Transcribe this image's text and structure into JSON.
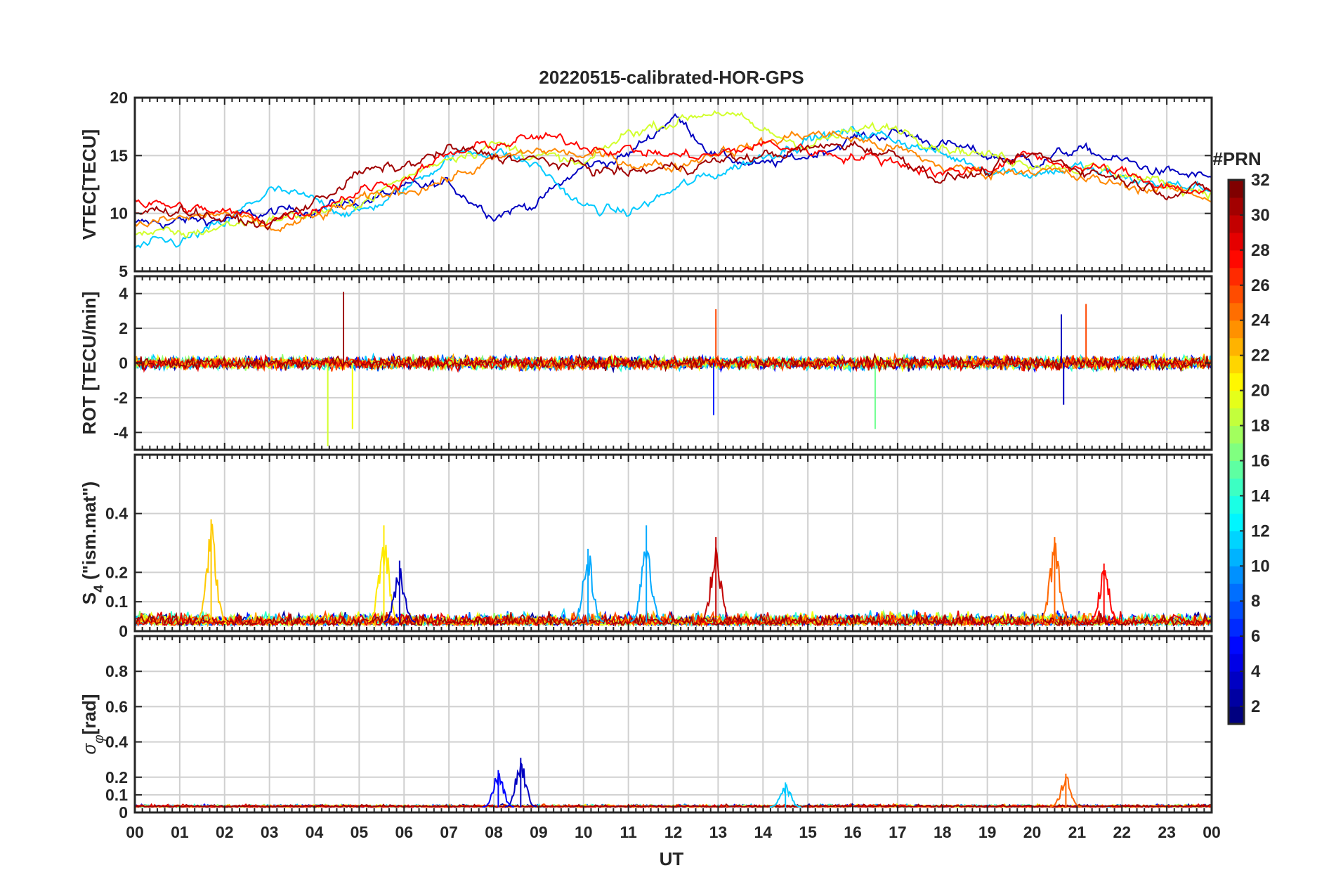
{
  "figure": {
    "title": "20220515-calibrated-HOR-GPS",
    "xlabel": "UT"
  },
  "chart_data": [
    {
      "type": "line",
      "panel": "vtec",
      "title": "20220515-calibrated-HOR-GPS",
      "ylabel": "VTEC[TECU]",
      "ylim": [
        5,
        20
      ],
      "yticks": [
        "5",
        "10",
        "15",
        "20"
      ],
      "xlim": [
        0,
        24
      ],
      "grid": true,
      "series_note": "multiple PRN traces colored by PRN (jet colormap)",
      "series": [
        {
          "prn": 3,
          "x": [
            0,
            1,
            2,
            3,
            4,
            5,
            6,
            7,
            8,
            9,
            10,
            11,
            12,
            13,
            14,
            15,
            16,
            17,
            18,
            19,
            20,
            21,
            22,
            23,
            24
          ],
          "y": [
            9,
            9.3,
            9.5,
            10,
            10.5,
            11,
            12,
            12.5,
            10,
            11,
            14,
            15,
            18.5,
            15,
            14,
            15,
            16.5,
            17,
            16,
            15,
            14.5,
            15.5,
            14.5,
            13.5,
            13
          ]
        },
        {
          "prn": 11,
          "x": [
            0,
            1,
            2,
            3,
            4,
            5,
            6,
            7,
            8,
            9,
            10,
            11,
            12,
            13,
            14,
            15,
            16,
            17,
            18,
            19,
            20,
            21,
            22,
            23,
            24
          ],
          "y": [
            7,
            7.5,
            9,
            12,
            11,
            10,
            12,
            15,
            15.5,
            14,
            10.5,
            10,
            12,
            13.5,
            15,
            16.5,
            17,
            16.5,
            15,
            14,
            13.5,
            14,
            13,
            12.5,
            12
          ]
        },
        {
          "prn": 19,
          "x": [
            0,
            1,
            2,
            3,
            4,
            5,
            6,
            7,
            8,
            9,
            10,
            11,
            12,
            13,
            14,
            15,
            16,
            17,
            18,
            19,
            20,
            21,
            22,
            23,
            24
          ],
          "y": [
            8.5,
            8,
            9,
            9.5,
            10,
            11,
            13,
            15,
            16,
            15,
            14,
            17,
            18,
            19,
            17,
            16,
            17,
            17.5,
            16,
            15,
            14.5,
            14,
            13.5,
            12.5,
            12
          ]
        },
        {
          "prn": 24,
          "x": [
            0,
            1,
            2,
            3,
            4,
            5,
            6,
            7,
            8,
            9,
            10,
            11,
            12,
            13,
            14,
            15,
            16,
            17,
            18,
            19,
            20,
            21,
            22,
            23,
            24
          ],
          "y": [
            9,
            9.5,
            10,
            8.5,
            9.5,
            11,
            12,
            13,
            14.5,
            15.5,
            15,
            14.5,
            14,
            15.5,
            16,
            17,
            16.5,
            15.5,
            14,
            13.5,
            14,
            13,
            12.5,
            12,
            11.5
          ]
        },
        {
          "prn": 28,
          "x": [
            0,
            1,
            2,
            3,
            4,
            5,
            6,
            7,
            8,
            9,
            10,
            11,
            12,
            13,
            14,
            15,
            16,
            17,
            18,
            19,
            20,
            21,
            22,
            23,
            24
          ],
          "y": [
            11,
            10.5,
            10,
            9.5,
            10.5,
            12,
            13,
            15,
            16,
            16.5,
            16,
            15.5,
            15,
            15,
            16,
            15.5,
            15,
            14.5,
            13.5,
            14,
            15,
            14,
            13.5,
            12.5,
            11.5
          ]
        },
        {
          "prn": 31,
          "x": [
            0,
            1,
            2,
            3,
            4,
            5,
            6,
            7,
            8,
            9,
            10,
            11,
            12,
            13,
            14,
            15,
            16,
            17,
            18,
            19,
            20,
            21,
            22,
            23,
            24
          ],
          "y": [
            10,
            10.5,
            9.5,
            9,
            11,
            13.5,
            14,
            15.5,
            15,
            14.5,
            14,
            13.5,
            14,
            14.5,
            15,
            15.5,
            16,
            15,
            13,
            13.5,
            15,
            14,
            13,
            12,
            12
          ]
        }
      ]
    },
    {
      "type": "line",
      "panel": "rot",
      "ylabel": "ROT [TECU/min]",
      "ylim": [
        -5,
        5
      ],
      "yticks": [
        "-4",
        "-2",
        "0",
        "2",
        "4"
      ],
      "xlim": [
        0,
        24
      ],
      "grid": true,
      "series_note": "noisy rate of TEC around 0 with spikes",
      "spikes": [
        {
          "x": 4.65,
          "y": 4.1,
          "prn": 31
        },
        {
          "x": 4.3,
          "y": -4.8,
          "prn": 19
        },
        {
          "x": 4.85,
          "y": -3.8,
          "prn": 20
        },
        {
          "x": 12.95,
          "y": 3.1,
          "prn": 26
        },
        {
          "x": 12.9,
          "y": -3.0,
          "prn": 6
        },
        {
          "x": 16.5,
          "y": -3.8,
          "prn": 16
        },
        {
          "x": 20.65,
          "y": 2.8,
          "prn": 3
        },
        {
          "x": 21.2,
          "y": 3.4,
          "prn": 26
        },
        {
          "x": 20.7,
          "y": -2.4,
          "prn": 3
        }
      ]
    },
    {
      "type": "line",
      "panel": "s4",
      "ylabel": "S4 (\"ism.mat\")",
      "ylim": [
        0,
        0.6
      ],
      "yticks": [
        "0",
        "0.1",
        "0.2",
        "0.4"
      ],
      "xlim": [
        0,
        24
      ],
      "grid": true,
      "peaks": [
        {
          "x": 1.7,
          "y": 0.38,
          "prn": 22
        },
        {
          "x": 5.55,
          "y": 0.36,
          "prn": 21
        },
        {
          "x": 11.4,
          "y": 0.36,
          "prn": 10
        },
        {
          "x": 12.95,
          "y": 0.32,
          "prn": 30
        },
        {
          "x": 20.5,
          "y": 0.32,
          "prn": 25
        },
        {
          "x": 21.6,
          "y": 0.23,
          "prn": 28
        },
        {
          "x": 10.1,
          "y": 0.28,
          "prn": 10
        },
        {
          "x": 5.9,
          "y": 0.24,
          "prn": 3
        }
      ]
    },
    {
      "type": "line",
      "panel": "sigma_phi",
      "ylabel": "σφ[rad]",
      "ylim": [
        0,
        1
      ],
      "yticks": [
        "0",
        "0.1",
        "0.2",
        "0.4",
        "0.6",
        "0.8"
      ],
      "xlim": [
        0,
        24
      ],
      "grid": true,
      "peaks": [
        {
          "x": 8.6,
          "y": 0.31,
          "prn": 3
        },
        {
          "x": 8.1,
          "y": 0.24,
          "prn": 5
        },
        {
          "x": 20.75,
          "y": 0.22,
          "prn": 25
        },
        {
          "x": 14.5,
          "y": 0.17,
          "prn": 11
        }
      ]
    }
  ],
  "xticks": [
    "00",
    "01",
    "02",
    "03",
    "04",
    "05",
    "06",
    "07",
    "08",
    "09",
    "10",
    "11",
    "12",
    "13",
    "14",
    "15",
    "16",
    "17",
    "18",
    "19",
    "20",
    "21",
    "22",
    "23",
    "00"
  ],
  "colorbar": {
    "title": "#PRN",
    "range": [
      1,
      32
    ],
    "ticks": [
      "2",
      "4",
      "6",
      "8",
      "10",
      "12",
      "14",
      "16",
      "18",
      "20",
      "22",
      "24",
      "26",
      "28",
      "30",
      "32"
    ],
    "colormap": "jet"
  }
}
